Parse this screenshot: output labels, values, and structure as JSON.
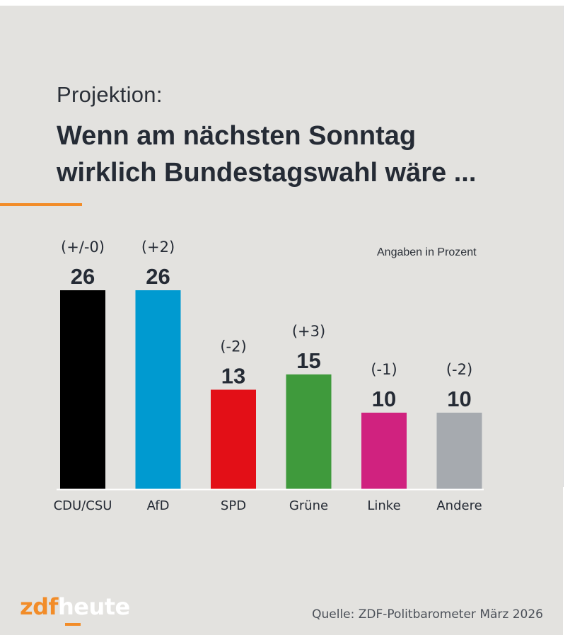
{
  "header": {
    "kicker": "Projektion:",
    "headline_line1": "Wenn am nächsten Sonntag",
    "headline_line2": "wirklich Bundestagswahl wäre ..."
  },
  "unit_note": "Angaben in Prozent",
  "colors": {
    "background": "#e3e2df",
    "accent": "#f28c28",
    "text": "#252b35",
    "baseline": "#ffffff"
  },
  "chart_data": {
    "type": "bar",
    "title": "Wenn am nächsten Sonntag wirklich Bundestagswahl wäre ...",
    "categories": [
      "CDU/CSU",
      "AfD",
      "SPD",
      "Grüne",
      "Linke",
      "Andere"
    ],
    "values": [
      26,
      26,
      13,
      15,
      10,
      10
    ],
    "changes": [
      "(+/-0)",
      "(+2)",
      "(-2)",
      "(+3)",
      "(-1)",
      "(-2)"
    ],
    "bar_colors": [
      "#000000",
      "#009ad0",
      "#e30f17",
      "#3f9a3c",
      "#d0227f",
      "#a6aaaf"
    ],
    "value_labels": [
      "26",
      "26",
      "13",
      "15",
      "10",
      "10"
    ],
    "ylim": [
      0,
      26
    ],
    "grid": false,
    "legend": "none"
  },
  "footer": {
    "logo_part1": "zdf",
    "logo_part2": "heute",
    "source": "Quelle: ZDF-Politbarometer März 2026"
  }
}
